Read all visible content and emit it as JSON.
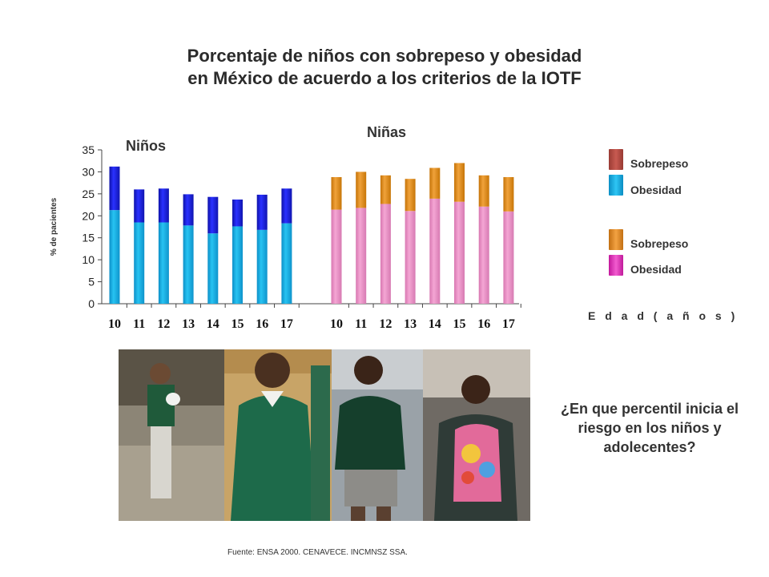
{
  "title_line1": "Porcentaje de niños con sobrepeso y obesidad",
  "title_line2": "en México de acuerdo a los criterios de la IOTF",
  "chart_data": {
    "type": "bar",
    "stacked": true,
    "ylabel": "% de pacientes",
    "xlabel": "E d a d  ( a ñ o s )",
    "ylim": [
      0,
      35
    ],
    "yticks": [
      0,
      5,
      10,
      15,
      20,
      25,
      30,
      35
    ],
    "groups": [
      {
        "label": "Niños",
        "categories": [
          "10",
          "11",
          "12",
          "13",
          "14",
          "15",
          "16",
          "17"
        ],
        "series": [
          {
            "name": "Obesidad",
            "color": "#1ab3e6",
            "values": [
              21.3,
              18.5,
              18.5,
              17.8,
              16.0,
              17.6,
              16.8,
              18.3
            ]
          },
          {
            "name": "Sobrepeso",
            "color": "#1c22d9",
            "values": [
              9.9,
              7.5,
              7.7,
              7.1,
              8.3,
              6.1,
              8.0,
              7.9
            ]
          }
        ]
      },
      {
        "label": "Niñas",
        "categories": [
          "10",
          "11",
          "12",
          "13",
          "14",
          "15",
          "16",
          "17"
        ],
        "series": [
          {
            "name": "Obesidad",
            "color": "#e88fc4",
            "values": [
              21.4,
              21.8,
              22.7,
              21.1,
              23.9,
              23.2,
              22.1,
              21.0
            ]
          },
          {
            "name": "Sobrepeso",
            "color": "#dd8a18",
            "values": [
              7.4,
              8.2,
              6.5,
              7.3,
              7.0,
              8.8,
              7.1,
              7.8
            ]
          }
        ]
      }
    ],
    "legend": [
      {
        "name": "Sobrepeso",
        "color": "#b5473f"
      },
      {
        "name": "Obesidad",
        "color": "#13a8dc"
      },
      {
        "name": "Sobrepeso",
        "color": "#e5891f"
      },
      {
        "name": "Obesidad",
        "color": "#e135b8"
      }
    ],
    "legend_position": "right"
  },
  "photo": {
    "name": "photo-strip-students"
  },
  "question": "¿En que percentil inicia el riesgo en los niños y adolecentes?",
  "source": "Fuente: ENSA 2000. CENAVECE. INCMNSZ SSA."
}
